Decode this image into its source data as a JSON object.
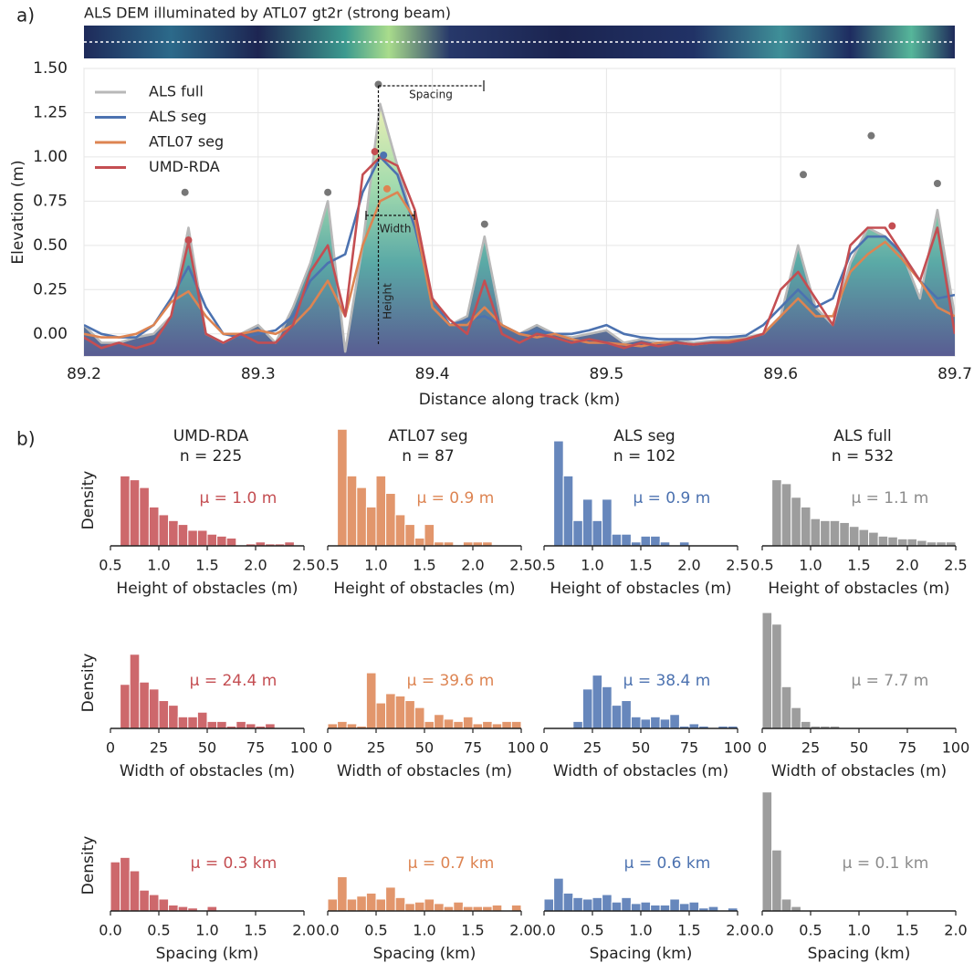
{
  "panel_labels": [
    "a)",
    "b)"
  ],
  "dem_title": "ALS DEM illuminated by ATL07 gt2r  (strong beam)",
  "chart_data": [
    {
      "type": "line",
      "xlabel": "Distance along track (km)",
      "ylabel": "Elevation (m)",
      "annotations": [
        "Spacing",
        "Width",
        "Height"
      ],
      "legend": "upper left",
      "grid": true,
      "xlim": [
        89.2,
        89.7
      ],
      "xticks": [
        89.2,
        89.3,
        89.4,
        89.5,
        89.6,
        89.7
      ],
      "ylim": [
        -0.125,
        1.5
      ],
      "yticks": [
        {
          "value": 0,
          "label": "0.00"
        },
        {
          "value": 0.25,
          "label": "0.25"
        },
        {
          "value": 0.5,
          "label": "0.50"
        },
        {
          "value": 0.75,
          "label": "0.75"
        },
        {
          "value": 1,
          "label": "1.00"
        },
        {
          "value": 1.25,
          "label": "1.25"
        },
        {
          "value": 1.5,
          "label": "1.50"
        }
      ],
      "x": [
        89.2,
        89.21,
        89.22,
        89.23,
        89.24,
        89.25,
        89.26,
        89.27,
        89.28,
        89.29,
        89.3,
        89.31,
        89.32,
        89.33,
        89.34,
        89.35,
        89.36,
        89.37,
        89.38,
        89.39,
        89.4,
        89.41,
        89.42,
        89.43,
        89.44,
        89.45,
        89.46,
        89.47,
        89.48,
        89.49,
        89.5,
        89.51,
        89.52,
        89.53,
        89.54,
        89.55,
        89.56,
        89.57,
        89.58,
        89.59,
        89.6,
        89.61,
        89.62,
        89.63,
        89.64,
        89.65,
        89.66,
        89.67,
        89.68,
        89.69,
        89.7
      ],
      "series": [
        {
          "name": "ALS full",
          "color": "#b8b8b8",
          "fill": true,
          "values": [
            0.05,
            -0.05,
            -0.05,
            -0.02,
            0.0,
            0.1,
            0.6,
            0.0,
            -0.05,
            0.0,
            0.05,
            -0.05,
            0.15,
            0.4,
            0.75,
            -0.1,
            0.5,
            1.3,
            0.95,
            0.6,
            0.2,
            0.05,
            0.1,
            0.55,
            0.05,
            0.0,
            0.05,
            0.0,
            -0.02,
            0.0,
            0.02,
            -0.05,
            -0.03,
            -0.05,
            -0.03,
            -0.05,
            -0.04,
            -0.03,
            -0.02,
            0.0,
            0.1,
            0.5,
            0.15,
            0.05,
            0.4,
            0.6,
            0.55,
            0.45,
            0.2,
            0.7,
            0.1
          ],
          "peaks": {
            "color": "#777777",
            "x": [
              89.258,
              89.34,
              89.369,
              89.43,
              89.613,
              89.652,
              89.69
            ],
            "y": [
              0.8,
              0.8,
              1.41,
              0.62,
              0.9,
              1.12,
              0.85
            ]
          }
        },
        {
          "name": "ALS seg",
          "color": "#4c72b0",
          "values": [
            0.05,
            0.0,
            -0.02,
            -0.02,
            0.05,
            0.2,
            0.38,
            0.15,
            0.0,
            -0.02,
            0.0,
            0.02,
            0.1,
            0.3,
            0.4,
            0.45,
            0.8,
            1.0,
            0.9,
            0.6,
            0.2,
            0.05,
            0.08,
            0.1,
            0.05,
            0.0,
            0.02,
            0.0,
            0.0,
            0.02,
            0.05,
            0.0,
            -0.02,
            -0.03,
            -0.03,
            -0.03,
            -0.02,
            -0.02,
            -0.01,
            0.05,
            0.15,
            0.25,
            0.15,
            0.2,
            0.45,
            0.55,
            0.55,
            0.45,
            0.3,
            0.2,
            0.22
          ],
          "peaks": {
            "color": "#4c72b0",
            "x": [
              89.372
            ],
            "y": [
              1.01
            ]
          }
        },
        {
          "name": "ATL07 seg",
          "color": "#dd8452",
          "values": [
            0.0,
            -0.02,
            -0.02,
            0.0,
            0.05,
            0.18,
            0.24,
            0.1,
            0.0,
            0.0,
            0.02,
            0.0,
            0.05,
            0.15,
            0.3,
            0.1,
            0.5,
            0.75,
            0.8,
            0.65,
            0.15,
            0.05,
            0.05,
            0.15,
            0.05,
            0.0,
            -0.02,
            0.0,
            -0.03,
            -0.05,
            -0.05,
            -0.06,
            -0.07,
            -0.05,
            -0.05,
            -0.06,
            -0.05,
            -0.04,
            -0.03,
            0.0,
            0.1,
            0.2,
            0.1,
            0.1,
            0.35,
            0.45,
            0.52,
            0.42,
            0.3,
            0.15,
            0.1
          ],
          "peaks": {
            "color": "#dd8452",
            "x": [
              89.374
            ],
            "y": [
              0.82
            ]
          }
        },
        {
          "name": "UMD-RDA",
          "color": "#c44e52",
          "values": [
            -0.02,
            -0.08,
            -0.05,
            -0.08,
            -0.05,
            0.1,
            0.52,
            0.0,
            -0.05,
            0.0,
            -0.05,
            -0.05,
            0.05,
            0.35,
            0.5,
            0.1,
            0.9,
            1.0,
            0.95,
            0.7,
            0.2,
            0.08,
            0.0,
            0.3,
            0.0,
            -0.05,
            0.0,
            -0.02,
            -0.05,
            -0.03,
            -0.05,
            -0.08,
            -0.05,
            -0.07,
            -0.05,
            -0.06,
            -0.05,
            -0.05,
            -0.03,
            0.0,
            0.25,
            0.35,
            0.2,
            0.05,
            0.5,
            0.6,
            0.6,
            0.45,
            0.3,
            0.6,
            0.0
          ],
          "peaks": {
            "color": "#c44e52",
            "x": [
              89.26,
              89.367,
              89.664
            ],
            "y": [
              0.53,
              1.03,
              0.61
            ]
          }
        }
      ]
    },
    {
      "type": "histogram",
      "title": "UMD-RDA",
      "subtitle": "n = 225",
      "ylabel": "Density",
      "xlabel": "Height of obstacles (m)",
      "annotation": "μ = 1.0 m",
      "color": "#c44e52",
      "xlim": [
        0.5,
        2.5
      ],
      "xticks": [
        0.5,
        {
          "value": 1,
          "label": "1.0"
        },
        1.5,
        {
          "value": 2,
          "label": "2.0"
        },
        2.5
      ],
      "ylim": [
        0,
        3.1
      ],
      "bins": [
        0.6,
        0.7,
        0.8,
        0.9,
        1.0,
        1.1,
        1.2,
        1.3,
        1.4,
        1.5,
        1.6,
        1.7,
        1.8,
        1.9,
        2.0,
        2.1,
        2.2,
        2.3,
        2.4,
        2.5
      ],
      "values": [
        1.8,
        1.7,
        1.5,
        1.0,
        0.8,
        0.65,
        0.55,
        0.4,
        0.4,
        0.3,
        0.25,
        0.2,
        0,
        0.05,
        0.1,
        0.05,
        0.05,
        0.1,
        0
      ]
    },
    {
      "type": "histogram",
      "title": "ATL07 seg",
      "subtitle": "n = 87",
      "xlabel": "Height of obstacles (m)",
      "annotation": "μ = 0.9 m",
      "color": "#dd8452",
      "xlim": [
        0.5,
        2.5
      ],
      "xticks": [
        0.5,
        {
          "value": 1,
          "label": "1.0"
        },
        1.5,
        {
          "value": 2,
          "label": "2.0"
        },
        2.5
      ],
      "ylim": [
        0,
        3.1
      ],
      "bins": [
        0.6,
        0.7,
        0.8,
        0.9,
        1.0,
        1.1,
        1.2,
        1.3,
        1.4,
        1.5,
        1.6,
        1.7,
        1.8,
        1.9,
        2.0,
        2.1,
        2.2,
        2.3,
        2.4,
        2.5
      ],
      "values": [
        3.0,
        1.8,
        1.5,
        1.0,
        1.8,
        1.35,
        0.8,
        0.55,
        0.2,
        0.55,
        0.1,
        0.1,
        0,
        0.1,
        0.1,
        0.1,
        0,
        0,
        0
      ]
    },
    {
      "type": "histogram",
      "title": "ALS seg",
      "subtitle": "n = 102",
      "xlabel": "Height of obstacles (m)",
      "annotation": "μ = 0.9 m",
      "color": "#4c72b0",
      "xlim": [
        0.5,
        2.5
      ],
      "xticks": [
        0.5,
        {
          "value": 1,
          "label": "1.0"
        },
        1.5,
        {
          "value": 2,
          "label": "2.0"
        },
        2.5
      ],
      "ylim": [
        0,
        3.1
      ],
      "bins": [
        0.6,
        0.7,
        0.8,
        0.9,
        1.0,
        1.1,
        1.2,
        1.3,
        1.4,
        1.5,
        1.6,
        1.7,
        1.8,
        1.9,
        2.0,
        2.1,
        2.2,
        2.3,
        2.4,
        2.5
      ],
      "values": [
        2.7,
        1.8,
        0.65,
        1.2,
        0.65,
        1.2,
        0.3,
        0.3,
        0.1,
        0.25,
        0.25,
        0.1,
        0,
        0.1,
        0,
        0,
        0,
        0,
        0
      ]
    },
    {
      "type": "histogram",
      "title": "ALS full",
      "subtitle": "n = 532",
      "xlabel": "Height of obstacles (m)",
      "annotation": "μ = 1.1 m",
      "color": "#8c8c8c",
      "xlim": [
        0.5,
        2.5
      ],
      "xticks": [
        0.5,
        {
          "value": 1,
          "label": "1.0"
        },
        1.5,
        {
          "value": 2,
          "label": "2.0"
        },
        2.5
      ],
      "ylim": [
        0,
        3.1
      ],
      "bins": [
        0.6,
        0.7,
        0.8,
        0.9,
        1.0,
        1.1,
        1.2,
        1.3,
        1.4,
        1.5,
        1.6,
        1.7,
        1.8,
        1.9,
        2.0,
        2.1,
        2.2,
        2.3,
        2.4,
        2.5
      ],
      "values": [
        1.7,
        1.6,
        1.25,
        1.0,
        0.7,
        0.65,
        0.65,
        0.6,
        0.5,
        0.42,
        0.35,
        0.25,
        0.23,
        0.18,
        0.18,
        0.14,
        0.1,
        0.1,
        0.1
      ]
    },
    {
      "type": "histogram",
      "ylabel": "Density",
      "xlabel": "Width of obstacles (m)",
      "annotation": "μ = 24.4 m",
      "color": "#c44e52",
      "xlim": [
        0,
        100
      ],
      "xticks": [
        0,
        25,
        50,
        75,
        100
      ],
      "ylim": [
        0,
        0.052
      ],
      "bins": [
        0,
        5,
        10,
        15,
        20,
        25,
        30,
        35,
        40,
        45,
        50,
        55,
        60,
        65,
        70,
        75,
        80,
        85,
        90,
        95,
        100
      ],
      "values": [
        0,
        0.019,
        0.032,
        0.02,
        0.017,
        0.012,
        0.01,
        0.005,
        0.005,
        0.007,
        0.003,
        0.003,
        0.001,
        0.003,
        0.002,
        0.001,
        0.002,
        0,
        0,
        0
      ]
    },
    {
      "type": "histogram",
      "xlabel": "Width of obstacles (m)",
      "annotation": "μ = 39.6 m",
      "color": "#dd8452",
      "xlim": [
        0,
        100
      ],
      "xticks": [
        0,
        25,
        50,
        75,
        100
      ],
      "ylim": [
        0,
        0.052
      ],
      "bins": [
        0,
        5,
        10,
        15,
        20,
        25,
        30,
        35,
        40,
        45,
        50,
        55,
        60,
        65,
        70,
        75,
        80,
        85,
        90,
        95,
        100
      ],
      "values": [
        0.002,
        0.003,
        0.002,
        0.001,
        0.024,
        0.011,
        0.015,
        0.014,
        0.012,
        0.009,
        0.003,
        0.006,
        0.004,
        0.003,
        0.005,
        0.002,
        0.003,
        0.002,
        0.003,
        0.003
      ]
    },
    {
      "type": "histogram",
      "xlabel": "Width of obstacles (m)",
      "annotation": "μ = 38.4 m",
      "color": "#4c72b0",
      "xlim": [
        0,
        100
      ],
      "xticks": [
        0,
        25,
        50,
        75,
        100
      ],
      "ylim": [
        0,
        0.052
      ],
      "bins": [
        0,
        5,
        10,
        15,
        20,
        25,
        30,
        35,
        40,
        45,
        50,
        55,
        60,
        65,
        70,
        75,
        80,
        85,
        90,
        95,
        100
      ],
      "values": [
        0,
        0,
        0,
        0.003,
        0.017,
        0.023,
        0.018,
        0.01,
        0.012,
        0.005,
        0.004,
        0.005,
        0.004,
        0.006,
        0.001,
        0.002,
        0.001,
        0,
        0.001,
        0.001
      ]
    },
    {
      "type": "histogram",
      "xlabel": "Width of obstacles (m)",
      "annotation": "μ = 7.7 m",
      "color": "#8c8c8c",
      "xlim": [
        0,
        100
      ],
      "xticks": [
        0,
        25,
        50,
        75,
        100
      ],
      "ylim": [
        0,
        0.052
      ],
      "bins": [
        0,
        5,
        10,
        15,
        20,
        25,
        30,
        35,
        40,
        45,
        50,
        55,
        60,
        65,
        70,
        75,
        80,
        85,
        90,
        95,
        100
      ],
      "values": [
        0.05,
        0.045,
        0.018,
        0.009,
        0.003,
        0.001,
        0.001,
        0.001,
        0,
        0,
        0,
        0,
        0,
        0,
        0,
        0,
        0,
        0,
        0,
        0
      ]
    },
    {
      "type": "histogram",
      "ylabel": "Density",
      "xlabel": "Spacing (km)",
      "annotation": "μ = 0.3 km",
      "color": "#c44e52",
      "xlim": [
        0,
        2
      ],
      "xticks": [
        {
          "value": 0,
          "label": "0.0"
        },
        0.5,
        {
          "value": 1,
          "label": "1.0"
        },
        1.5,
        {
          "value": 2,
          "label": "2.0"
        }
      ],
      "ylim": [
        0,
        8.1
      ],
      "bins": [
        0,
        0.1,
        0.2,
        0.3,
        0.4,
        0.5,
        0.6,
        0.7,
        0.8,
        0.9,
        1.0,
        1.1,
        1.2,
        1.3,
        1.4,
        1.5,
        1.6,
        1.7,
        1.8,
        1.9,
        2.0
      ],
      "values": [
        3.3,
        3.6,
        2.7,
        1.4,
        1.1,
        0.8,
        0.4,
        0.3,
        0.2,
        0,
        0.3,
        0,
        0,
        0,
        0,
        0,
        0,
        0,
        0,
        0
      ]
    },
    {
      "type": "histogram",
      "xlabel": "Spacing (km)",
      "annotation": "μ = 0.7 km",
      "color": "#dd8452",
      "xlim": [
        0,
        2
      ],
      "xticks": [
        {
          "value": 0,
          "label": "0.0"
        },
        0.5,
        {
          "value": 1,
          "label": "1.0"
        },
        1.5,
        {
          "value": 2,
          "label": "2.0"
        }
      ],
      "ylim": [
        0,
        8.1
      ],
      "bins": [
        0,
        0.1,
        0.2,
        0.3,
        0.4,
        0.5,
        0.6,
        0.7,
        0.8,
        0.9,
        1.0,
        1.1,
        1.2,
        1.3,
        1.4,
        1.5,
        1.6,
        1.7,
        1.8,
        1.9,
        2.0
      ],
      "values": [
        0.8,
        2.3,
        0.8,
        1.0,
        1.2,
        0.8,
        1.6,
        0.9,
        0.5,
        0.6,
        0.8,
        0.5,
        0.3,
        0.6,
        0.3,
        0.3,
        0.3,
        0.4,
        0,
        0.4
      ]
    },
    {
      "type": "histogram",
      "xlabel": "Spacing (km)",
      "annotation": "μ = 0.6 km",
      "color": "#4c72b0",
      "xlim": [
        0,
        2
      ],
      "xticks": [
        {
          "value": 0,
          "label": "0.0"
        },
        0.5,
        {
          "value": 1,
          "label": "1.0"
        },
        1.5,
        {
          "value": 2,
          "label": "2.0"
        }
      ],
      "ylim": [
        0,
        8.1
      ],
      "bins": [
        0,
        0.1,
        0.2,
        0.3,
        0.4,
        0.5,
        0.6,
        0.7,
        0.8,
        0.9,
        1.0,
        1.1,
        1.2,
        1.3,
        1.4,
        1.5,
        1.6,
        1.7,
        1.8,
        1.9,
        2.0
      ],
      "values": [
        0.8,
        2.2,
        1.2,
        0.9,
        0.8,
        0.9,
        1.1,
        0.6,
        0.9,
        0.5,
        0.6,
        0.4,
        0.4,
        0.8,
        0.5,
        0.6,
        0.2,
        0.3,
        0,
        0.2
      ]
    },
    {
      "type": "histogram",
      "xlabel": "Spacing (km)",
      "annotation": "μ = 0.1 km",
      "color": "#8c8c8c",
      "xlim": [
        0,
        2
      ],
      "xticks": [
        {
          "value": 0,
          "label": "0.0"
        },
        0.5,
        {
          "value": 1,
          "label": "1.0"
        },
        1.5,
        {
          "value": 2,
          "label": "2.0"
        }
      ],
      "ylim": [
        0,
        8.1
      ],
      "bins": [
        0,
        0.1,
        0.2,
        0.3,
        0.4,
        0.5,
        0.6,
        0.7,
        0.8,
        0.9,
        1.0,
        1.1,
        1.2,
        1.3,
        1.4,
        1.5,
        1.6,
        1.7,
        1.8,
        1.9,
        2.0
      ],
      "values": [
        8.0,
        4.1,
        0.8,
        0.3,
        0.05,
        0,
        0,
        0,
        0,
        0,
        0,
        0,
        0,
        0,
        0,
        0,
        0,
        0,
        0,
        0
      ]
    }
  ]
}
